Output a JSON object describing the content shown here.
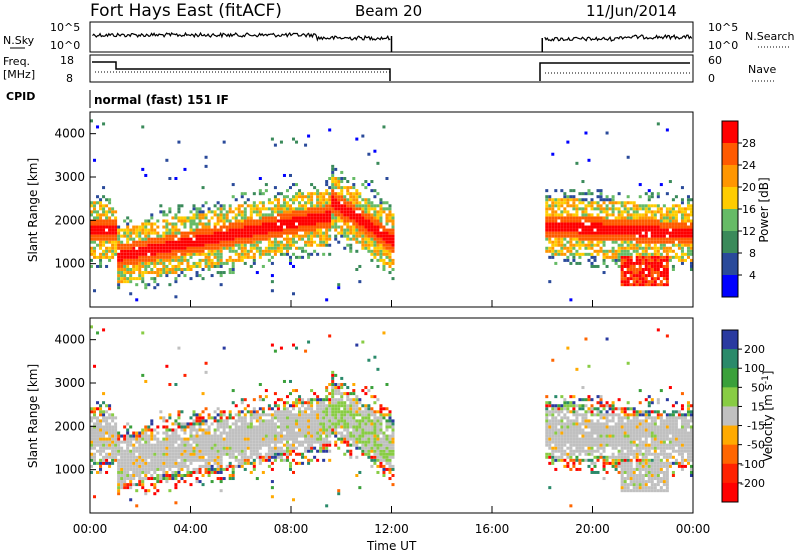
{
  "header": {
    "title": "Fort Hays East (fitACF)",
    "beam": "Beam 20",
    "date": "11/Jun/2014"
  },
  "strips": {
    "nsky_label": "N.Sky",
    "nsky_ticks": [
      "10^5",
      "10^0"
    ],
    "nsearch_label": "N.Search",
    "nsearch_ticks": [
      "10^5",
      "10^0"
    ],
    "freq_label": "Freq.",
    "freq_unit": "[MHz]",
    "freq_ticks": [
      "18",
      "8"
    ],
    "nave_label": "Nave",
    "nave_ticks": [
      "60",
      "0"
    ],
    "cpid_label": "CPID",
    "cpid_text": "normal (fast) 151 IF"
  },
  "time_axis": {
    "label": "Time UT",
    "ticks": [
      "00:00",
      "04:00",
      "08:00",
      "12:00",
      "16:00",
      "20:00",
      "00:00"
    ],
    "data_gap_hours": [
      12,
      18
    ]
  },
  "chart_data": [
    {
      "type": "heatmap",
      "panel": "power",
      "ylabel": "Slant Range [km]",
      "yticks": [
        "1000",
        "2000",
        "3000",
        "4000"
      ],
      "ylim": [
        0,
        4500
      ],
      "xlim_hours": [
        0,
        24
      ],
      "colorbar": {
        "label": "Power [dB]",
        "ticks": [
          "28",
          "24",
          "20",
          "16",
          "12",
          "8",
          "4"
        ],
        "colors": [
          "#ff0000",
          "#ff5a00",
          "#ff9600",
          "#ffcc00",
          "#66bb66",
          "#3a8a5a",
          "#2a4a9a",
          "#0000ff"
        ]
      },
      "description_bands": [
        {
          "hours": [
            0,
            1
          ],
          "range_km": [
            1600,
            2000
          ],
          "level_db": 26
        },
        {
          "hours": [
            1,
            9
          ],
          "range_km": [
            1100,
            2300
          ],
          "level_db": 22
        },
        {
          "hours": [
            9,
            12
          ],
          "range_km": [
            1400,
            2700
          ],
          "level_db": 18
        },
        {
          "hours": [
            18,
            24
          ],
          "range_km": [
            1500,
            2400
          ],
          "level_db": 18
        },
        {
          "hours": [
            21,
            23
          ],
          "range_km": [
            500,
            1200
          ],
          "level_db": 24
        }
      ]
    },
    {
      "type": "heatmap",
      "panel": "velocity",
      "ylabel": "Slant Range [km]",
      "yticks": [
        "1000",
        "2000",
        "3000",
        "4000"
      ],
      "ylim": [
        0,
        4500
      ],
      "xlim_hours": [
        0,
        24
      ],
      "colorbar": {
        "label": "Velocity [m s^-1]",
        "ticks": [
          "200",
          "100",
          "50",
          "15",
          "-15",
          "-50",
          "-100",
          "-200"
        ],
        "colors": [
          "#2a3aa0",
          "#2a8a6a",
          "#3aa03a",
          "#88cc44",
          "#c0c0c0",
          "#ffaa00",
          "#ff6600",
          "#ff2200",
          "#ff0000"
        ]
      }
    }
  ]
}
